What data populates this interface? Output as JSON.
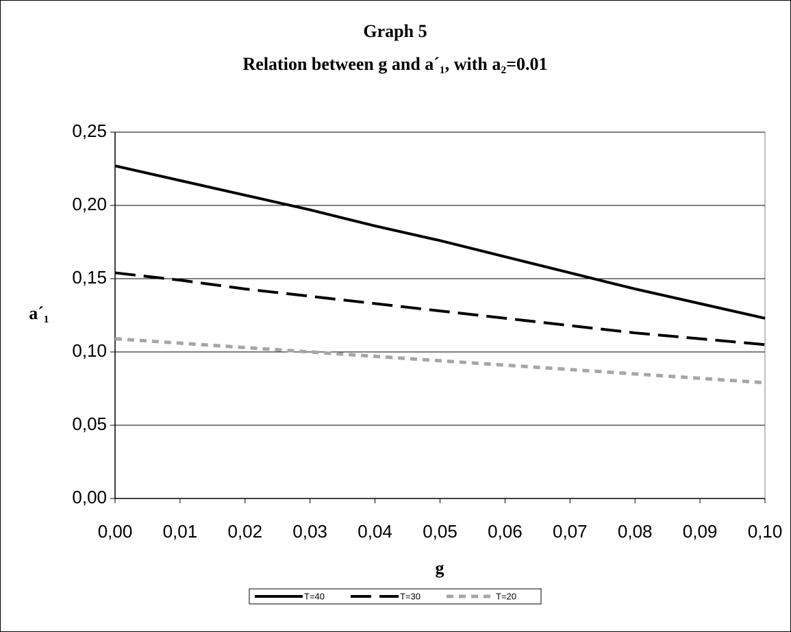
{
  "chart_data": {
    "type": "line",
    "title": "Graph 5",
    "subtitle": "Relation between g and a´₁, with a₂=0.01",
    "x_label": "g",
    "y_label": "a´₁",
    "x": [
      0,
      0.01,
      0.02,
      0.03,
      0.04,
      0.05,
      0.06,
      0.07,
      0.08,
      0.09,
      0.1
    ],
    "series": [
      {
        "name": "T=40",
        "color": "#000000",
        "dash": "solid",
        "values": [
          0.227,
          0.217,
          0.207,
          0.197,
          0.186,
          0.176,
          0.165,
          0.154,
          0.143,
          0.133,
          0.123
        ]
      },
      {
        "name": "T=30",
        "color": "#000000",
        "dash": "dashed",
        "values": [
          0.154,
          0.149,
          0.143,
          0.138,
          0.133,
          0.128,
          0.123,
          0.118,
          0.113,
          0.109,
          0.105
        ]
      },
      {
        "name": "T=20",
        "color": "#a6a6a6",
        "dash": "dotted",
        "values": [
          0.109,
          0.106,
          0.103,
          0.1,
          0.097,
          0.094,
          0.091,
          0.088,
          0.085,
          0.082,
          0.079
        ]
      }
    ],
    "xlim": [
      0,
      0.1
    ],
    "xticks": [
      {
        "value": 0,
        "label": "0,00"
      },
      {
        "value": 0.01,
        "label": "0,01"
      },
      {
        "value": 0.02,
        "label": "0,02"
      },
      {
        "value": 0.03,
        "label": "0,03"
      },
      {
        "value": 0.04,
        "label": "0,04"
      },
      {
        "value": 0.05,
        "label": "0,05"
      },
      {
        "value": 0.06,
        "label": "0,06"
      },
      {
        "value": 0.07,
        "label": "0,07"
      },
      {
        "value": 0.08,
        "label": "0,08"
      },
      {
        "value": 0.09,
        "label": "0,09"
      },
      {
        "value": 0.1,
        "label": "0,10"
      }
    ],
    "ylim": [
      0,
      0.25
    ],
    "yticks": [
      {
        "value": 0,
        "label": "0,00"
      },
      {
        "value": 0.05,
        "label": "0,05"
      },
      {
        "value": 0.1,
        "label": "0,10"
      },
      {
        "value": 0.15,
        "label": "0,15"
      },
      {
        "value": 0.2,
        "label": "0,20"
      },
      {
        "value": 0.25,
        "label": "0,25"
      }
    ],
    "grid": true,
    "legend": "bottom"
  }
}
